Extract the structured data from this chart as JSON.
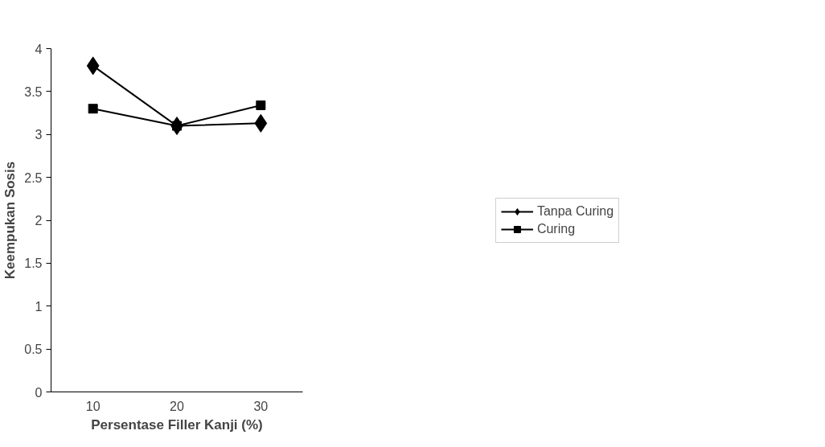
{
  "chart_data": {
    "type": "line",
    "xlabel": "Persentase Filler Kanji (%)",
    "ylabel": "Keempukan Sosis",
    "categories": [
      "10",
      "20",
      "30"
    ],
    "series": [
      {
        "name": "Tanpa Curing",
        "color": "#000000",
        "marker": "diamond",
        "values": [
          3.8,
          3.1,
          3.13
        ]
      },
      {
        "name": "Curing",
        "color": "#000000",
        "marker": "square",
        "values": [
          3.3,
          3.1,
          3.34
        ]
      }
    ],
    "ylim": [
      0,
      4
    ],
    "yticks": [
      0,
      0.5,
      1,
      1.5,
      2,
      2.5,
      3,
      3.5,
      4
    ],
    "grid": false,
    "legend": "right",
    "line_style": "solid"
  }
}
